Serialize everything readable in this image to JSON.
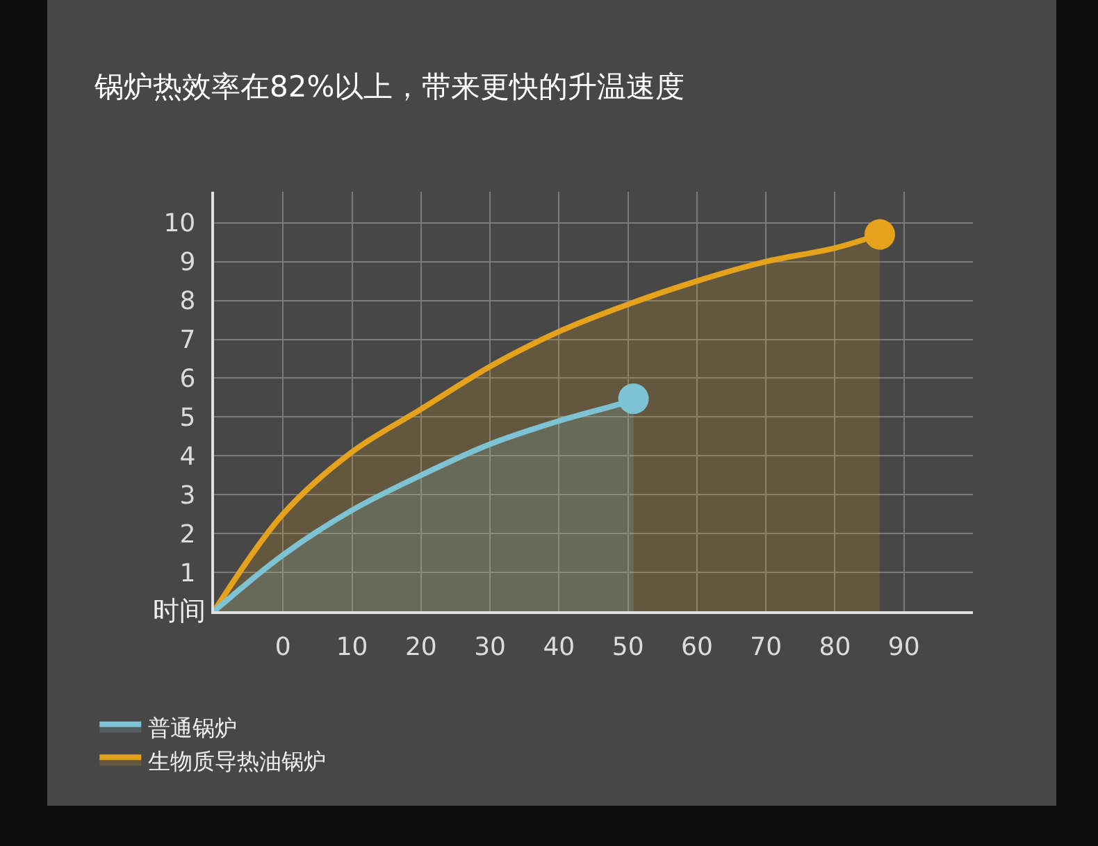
{
  "chart_data": {
    "type": "area",
    "title": "锅炉热效率在82%以上，带来更快的升温速度",
    "xlabel": "时间",
    "xlim": [
      -10,
      100
    ],
    "xticks": [
      0,
      10,
      20,
      30,
      40,
      50,
      60,
      70,
      80,
      90
    ],
    "ylim": [
      0,
      10.8
    ],
    "yticks": [
      1,
      2,
      3,
      4,
      5,
      6,
      7,
      8,
      9,
      10
    ],
    "grid": true,
    "legend": "bottom left",
    "line_style": "solid",
    "series": [
      {
        "name": "普通锅炉",
        "color": "#7ec3d3",
        "x": [
          -10,
          0,
          10,
          20,
          30,
          40,
          50,
          50.8
        ],
        "values": [
          0,
          1.45,
          2.6,
          3.5,
          4.3,
          4.9,
          5.4,
          5.47
        ]
      },
      {
        "name": "生物质导热油锅炉",
        "color": "#e5a21c",
        "x": [
          -10,
          0,
          10,
          20,
          30,
          40,
          50,
          60,
          70,
          80,
          86.5
        ],
        "values": [
          0,
          2.5,
          4.1,
          5.2,
          6.3,
          7.2,
          7.9,
          8.5,
          9.0,
          9.35,
          9.7
        ]
      }
    ]
  }
}
